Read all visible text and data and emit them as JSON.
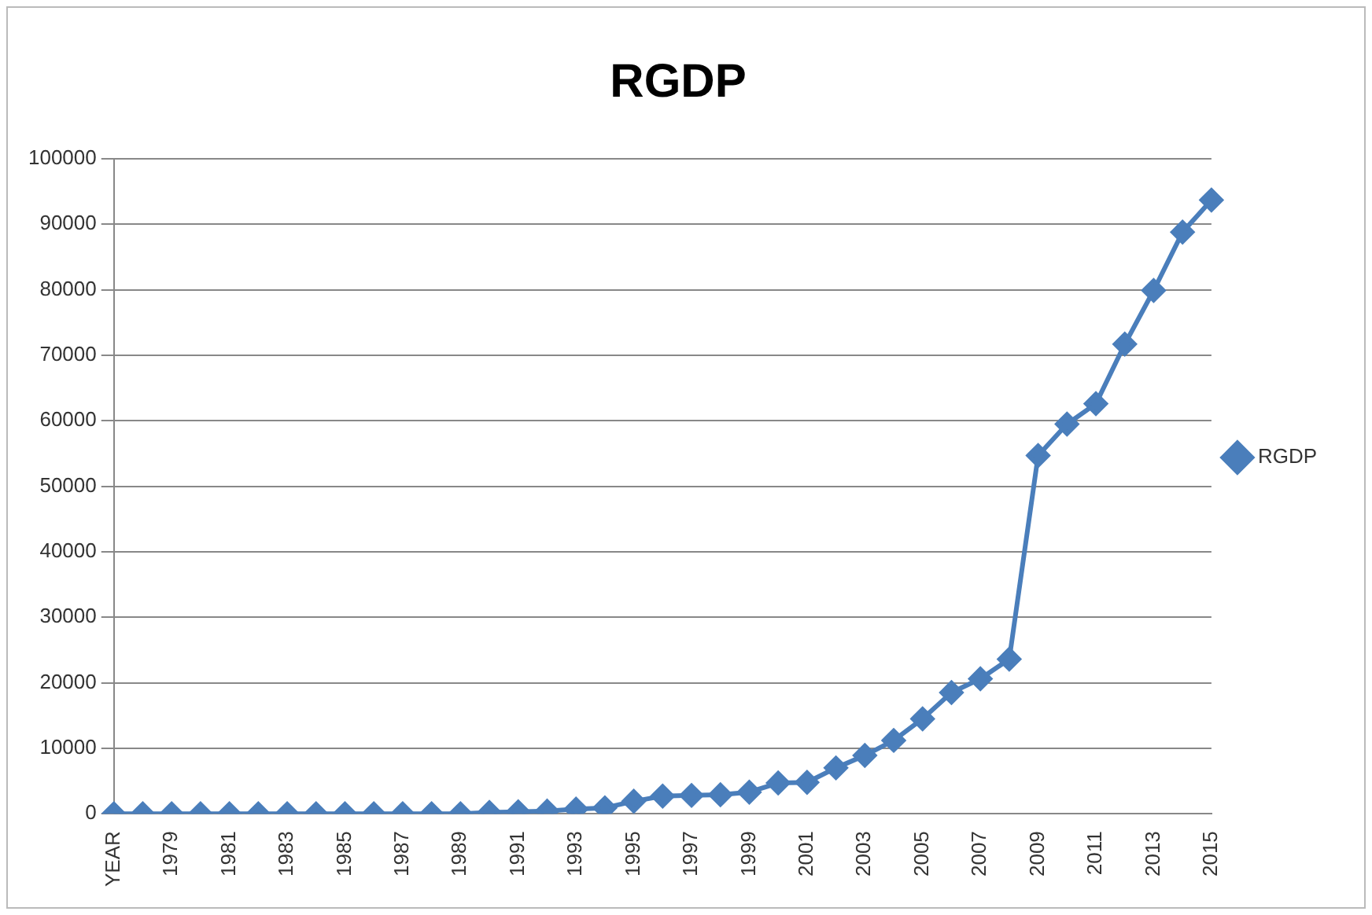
{
  "chart_data": {
    "type": "line",
    "title": "RGDP",
    "categories": [
      "YEAR",
      null,
      "1979",
      null,
      "1981",
      null,
      "1983",
      null,
      "1985",
      null,
      "1987",
      null,
      "1989",
      null,
      "1991",
      null,
      "1993",
      null,
      "1995",
      null,
      "1997",
      null,
      "1999",
      null,
      "2001",
      null,
      "2003",
      null,
      "2005",
      null,
      "2007",
      null,
      "2009",
      null,
      "2011",
      null,
      "2013",
      null,
      "2015"
    ],
    "series": [
      {
        "name": "RGDP",
        "color": "#4a7ebb",
        "values": [
          0,
          0,
          0,
          0,
          0,
          0,
          0,
          0,
          0,
          0,
          0,
          0,
          0,
          200,
          300,
          400,
          700,
          900,
          1900,
          2700,
          2800,
          2900,
          3300,
          4700,
          4800,
          7000,
          8900,
          11200,
          14500,
          18500,
          20600,
          23600,
          54700,
          59500,
          62600,
          71700,
          79900,
          88800,
          93700
        ]
      }
    ],
    "ylim": [
      0,
      100000
    ],
    "yticks": [
      0,
      10000,
      20000,
      30000,
      40000,
      50000,
      60000,
      70000,
      80000,
      90000,
      100000
    ],
    "grid": "y",
    "legend": "right",
    "marker": "diamond",
    "line_style": "solid"
  }
}
